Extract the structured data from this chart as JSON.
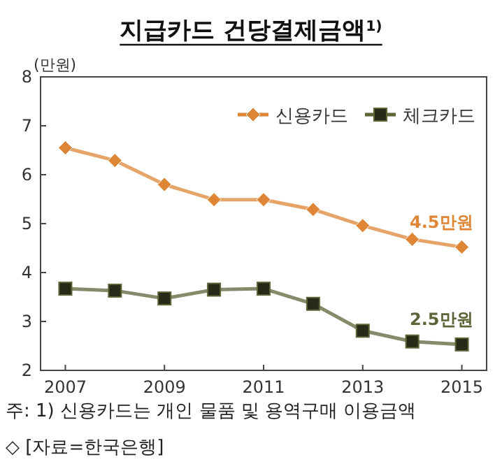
{
  "chart_data": {
    "type": "line",
    "title": "지급카드 건당결제금액$^{1)}$",
    "ylabel": "(만원)",
    "x": [
      2007,
      2008,
      2009,
      2010,
      2011,
      2012,
      2013,
      2014,
      2015
    ],
    "xlim": [
      2006.5,
      2015.5
    ],
    "xticks": [
      2007,
      2009,
      2011,
      2013,
      2015
    ],
    "ylim": [
      2,
      8
    ],
    "yticks": [
      2,
      3,
      4,
      5,
      6,
      7,
      8
    ],
    "series": [
      {
        "name": "신용카드",
        "color": "#de8536",
        "marker": "diamond",
        "values": [
          6.55,
          6.29,
          5.8,
          5.49,
          5.49,
          5.29,
          4.96,
          4.68,
          4.52
        ]
      },
      {
        "name": "체크카드",
        "color": "#5e6338",
        "marker": "square",
        "values": [
          3.67,
          3.63,
          3.47,
          3.65,
          3.67,
          3.36,
          2.81,
          2.59,
          2.53
        ]
      }
    ],
    "legend": "top right",
    "grid": false,
    "annotations": [
      {
        "text": "4.5만원",
        "x": 2015,
        "y": 4.52
      },
      {
        "text": "2.5만원",
        "x": 2015,
        "y": 2.53
      },
      "주: 1) 신용카드는 개인 물품 및 용역구매 이용금액",
      "◇ [자료=한국은행]"
    ]
  }
}
